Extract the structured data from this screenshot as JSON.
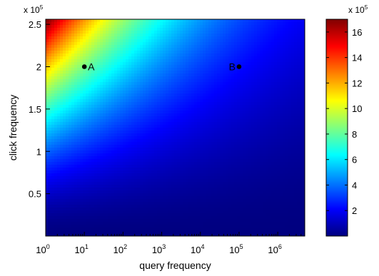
{
  "chart_data": {
    "type": "heatmap",
    "title": "",
    "xlabel": "query frequency",
    "ylabel": "click frequency",
    "x_scale": "log",
    "xlim": [
      1,
      5000000
    ],
    "x_ticks": [
      {
        "value": 1,
        "base": "10",
        "exp": "0"
      },
      {
        "value": 10,
        "base": "10",
        "exp": "1"
      },
      {
        "value": 100,
        "base": "10",
        "exp": "2"
      },
      {
        "value": 1000,
        "base": "10",
        "exp": "3"
      },
      {
        "value": 10000,
        "base": "10",
        "exp": "4"
      },
      {
        "value": 100000,
        "base": "10",
        "exp": "5"
      },
      {
        "value": 1000000,
        "base": "10",
        "exp": "6"
      }
    ],
    "ylim": [
      0,
      2.56
    ],
    "y_ticks": [
      {
        "value": 0.5,
        "label": "0.5"
      },
      {
        "value": 1,
        "label": "1"
      },
      {
        "value": 1.5,
        "label": "1.5"
      },
      {
        "value": 2,
        "label": "2"
      },
      {
        "value": 2.5,
        "label": "2.5"
      }
    ],
    "y_multiplier": {
      "base": "x 10",
      "exp": "5"
    },
    "colorbar": {
      "colormap": "jet",
      "range": [
        0,
        17
      ],
      "ticks": [
        {
          "value": 2,
          "label": "2"
        },
        {
          "value": 4,
          "label": "4"
        },
        {
          "value": 6,
          "label": "6"
        },
        {
          "value": 8,
          "label": "8"
        },
        {
          "value": 10,
          "label": "10"
        },
        {
          "value": 12,
          "label": "12"
        },
        {
          "value": 14,
          "label": "14"
        },
        {
          "value": 16,
          "label": "16"
        }
      ],
      "multiplier": {
        "base": "x 10",
        "exp": "5"
      }
    },
    "points": [
      {
        "label": "A",
        "x": 10,
        "y": 2.0,
        "label_side": "right"
      },
      {
        "label": "B",
        "x": 100000,
        "y": 2.0,
        "label_side": "left"
      }
    ],
    "grid": false
  }
}
